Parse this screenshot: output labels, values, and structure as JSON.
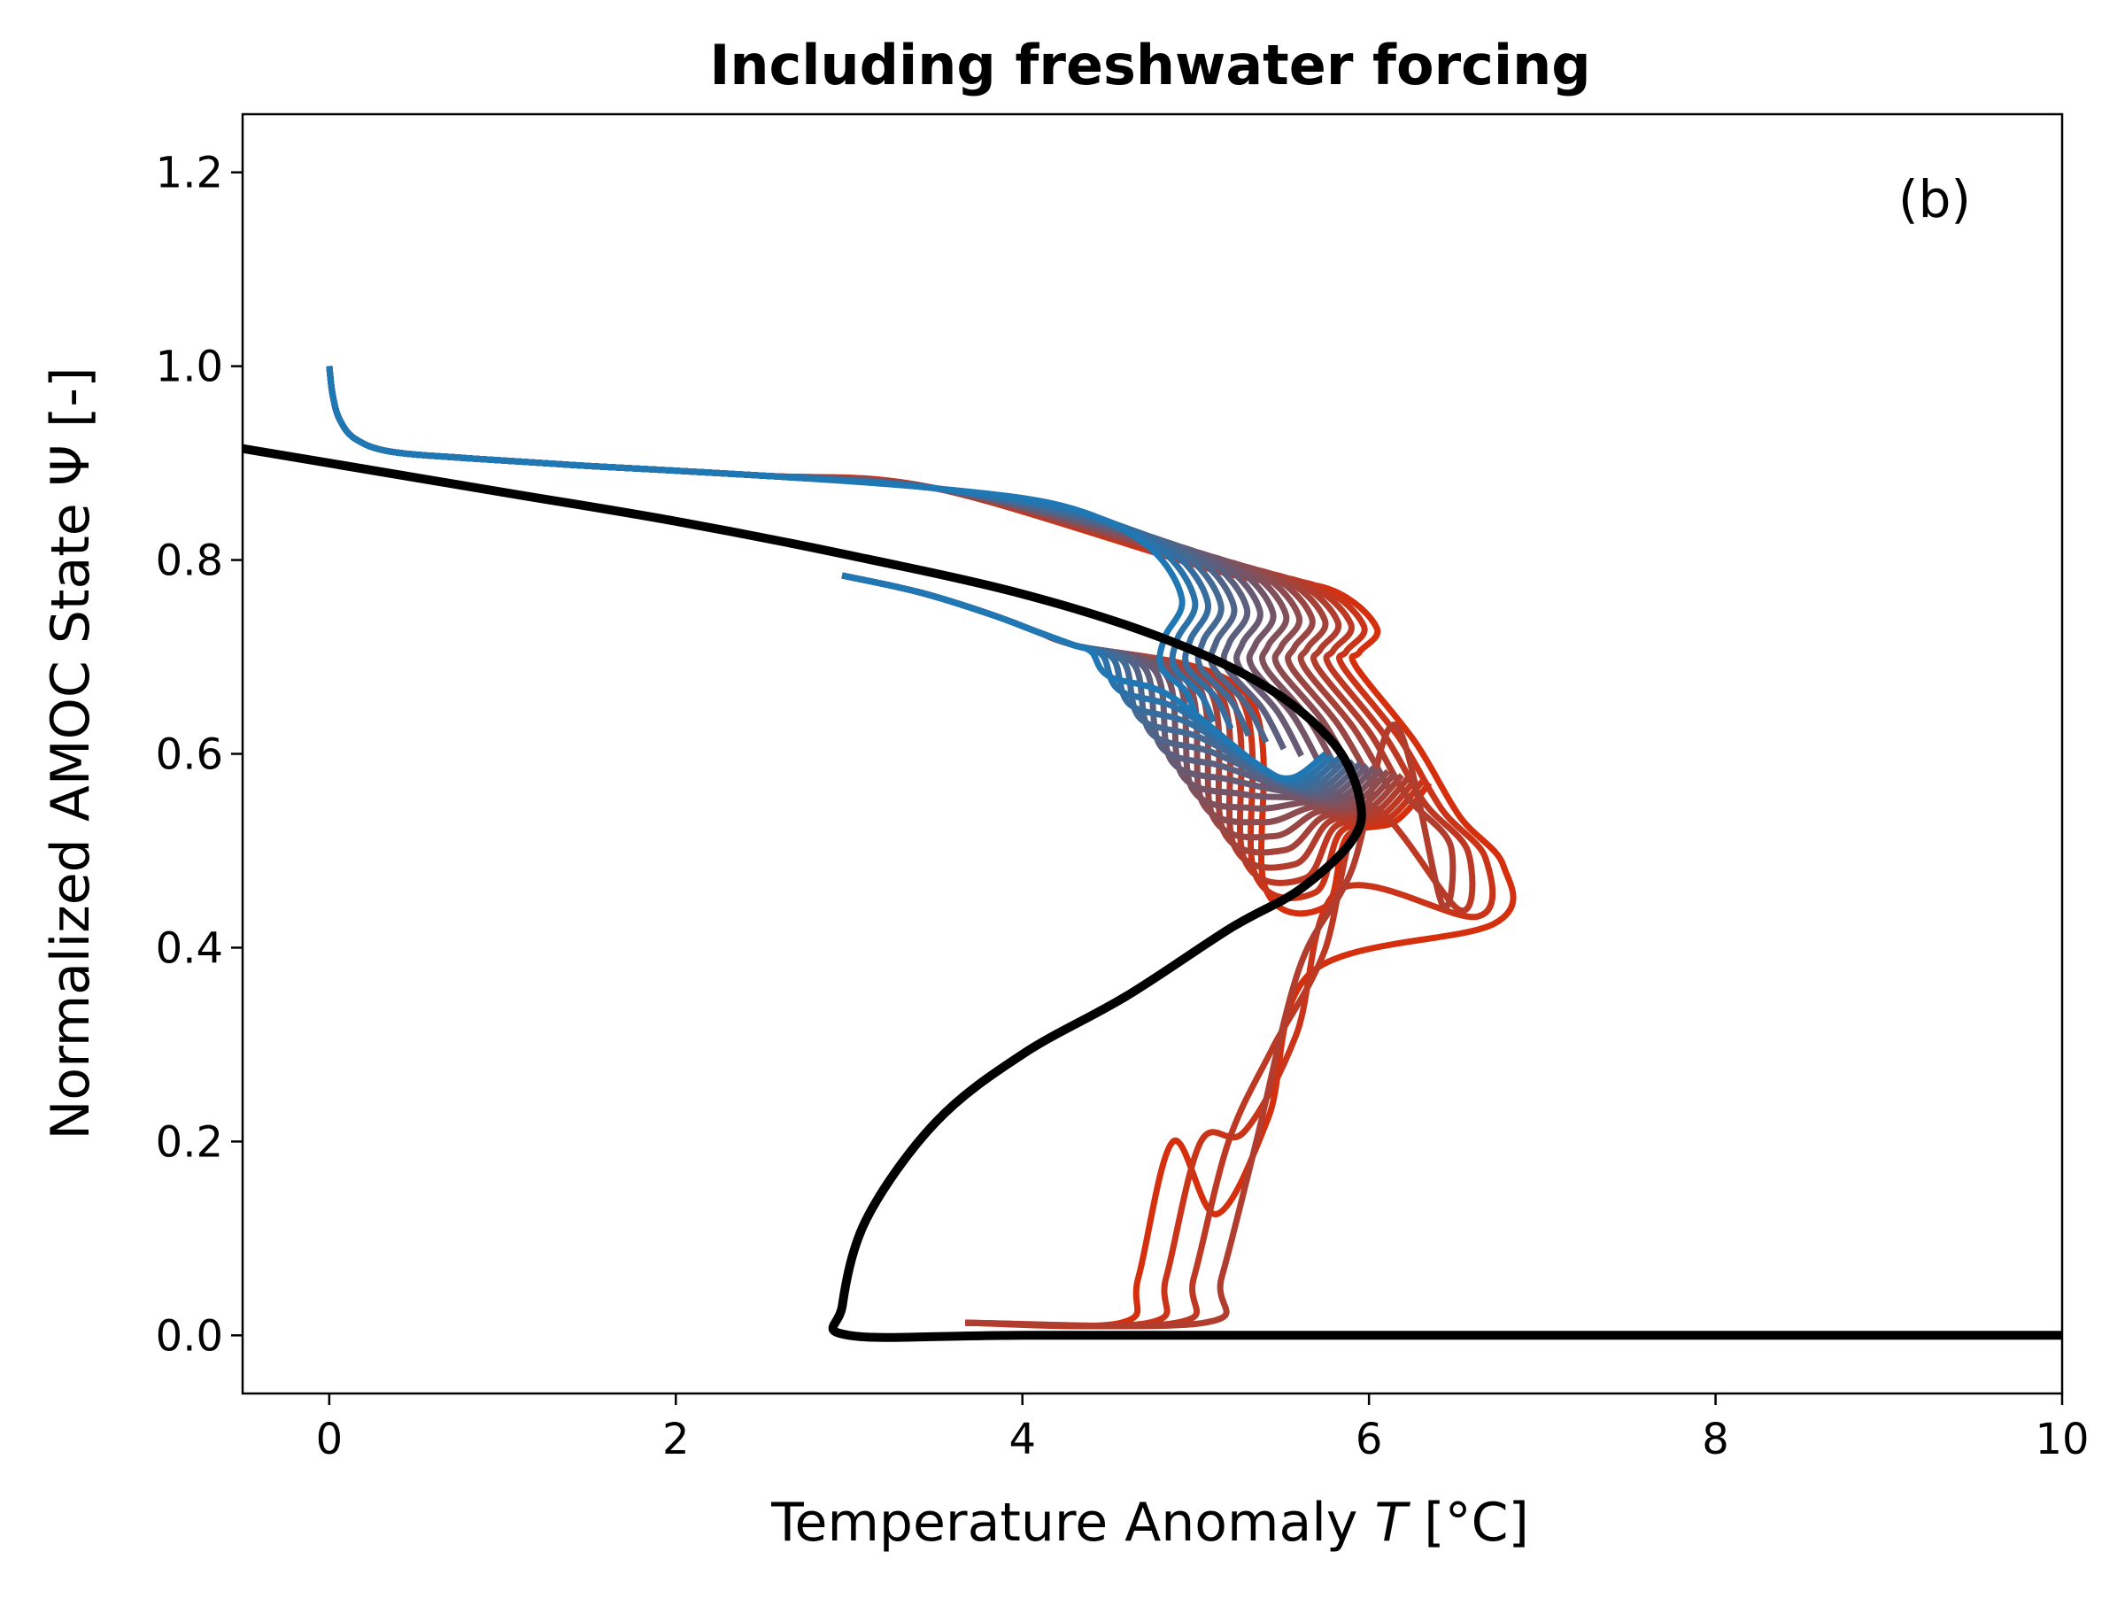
{
  "chart_data": {
    "type": "line",
    "title": "Including freshwater forcing",
    "xlabel_prefix": "Temperature Anomaly ",
    "xlabel_var": "T",
    "xlabel_unit": " [°C]",
    "ylabel": "Normalized AMOC State Ψ [-]",
    "panel_label": "(b)",
    "xlim": [
      -0.5,
      10
    ],
    "ylim": [
      -0.06,
      1.26
    ],
    "xticks": [
      0,
      2,
      4,
      6,
      8,
      10
    ],
    "yticks": [
      0.0,
      0.2,
      0.4,
      0.6,
      0.8,
      1.0,
      1.2
    ],
    "xtick_labels": [
      "0",
      "2",
      "4",
      "6",
      "8",
      "10"
    ],
    "ytick_labels": [
      "0.0",
      "0.2",
      "0.4",
      "0.6",
      "0.8",
      "1.0",
      "1.2"
    ],
    "grid": false,
    "colors": {
      "start": "#1f77b4",
      "end": "#d62f0e",
      "equilibrium": "#000000"
    },
    "equilibrium_curve": {
      "x": [
        -0.5,
        0,
        1,
        2,
        3,
        4,
        4.8,
        5.4,
        5.8,
        5.95,
        5.9,
        5.6,
        5.2,
        4.6,
        4.0,
        3.5,
        3.1,
        2.96,
        3.0,
        4,
        6,
        8,
        10
      ],
      "y": [
        0.915,
        0.9,
        0.87,
        0.84,
        0.805,
        0.765,
        0.72,
        0.67,
        0.61,
        0.55,
        0.51,
        0.46,
        0.42,
        0.35,
        0.29,
        0.22,
        0.12,
        0.03,
        0.0,
        0.0,
        0.0,
        0.0,
        0.0
      ]
    },
    "trajectory_start": {
      "x": 0.0,
      "y": 1.0
    },
    "trajectory_count": 16
  }
}
